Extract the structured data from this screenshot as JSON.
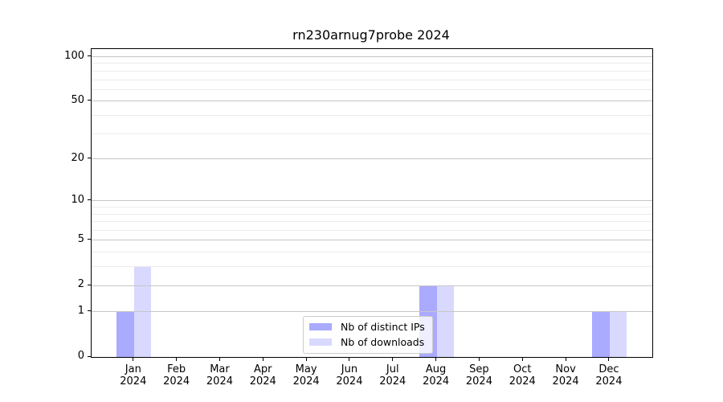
{
  "chart_data": {
    "type": "bar",
    "title": "rn230arnug7probe 2024",
    "categories": [
      {
        "month": "Jan",
        "year": "2024"
      },
      {
        "month": "Feb",
        "year": "2024"
      },
      {
        "month": "Mar",
        "year": "2024"
      },
      {
        "month": "Apr",
        "year": "2024"
      },
      {
        "month": "May",
        "year": "2024"
      },
      {
        "month": "Jun",
        "year": "2024"
      },
      {
        "month": "Jul",
        "year": "2024"
      },
      {
        "month": "Aug",
        "year": "2024"
      },
      {
        "month": "Sep",
        "year": "2024"
      },
      {
        "month": "Oct",
        "year": "2024"
      },
      {
        "month": "Nov",
        "year": "2024"
      },
      {
        "month": "Dec",
        "year": "2024"
      }
    ],
    "series": [
      {
        "name": "Nb of distinct IPs",
        "color": "#aaaaff",
        "values": [
          1,
          0,
          0,
          0,
          0,
          0,
          0,
          2,
          0,
          0,
          0,
          1
        ]
      },
      {
        "name": "Nb of downloads",
        "color": "#d9d9ff",
        "values": [
          3,
          0,
          0,
          0,
          0,
          0,
          0,
          2,
          0,
          0,
          0,
          1
        ]
      }
    ],
    "xlabel": "",
    "ylabel": "",
    "y_axis": {
      "scale": "log1p",
      "tick_labels": [
        "100",
        "50",
        "20",
        "10",
        "5",
        "2",
        "1",
        "0"
      ],
      "tick_values": [
        100,
        50,
        20,
        10,
        5,
        2,
        1,
        0
      ],
      "major_gridlines": [
        1,
        2,
        5,
        10,
        20,
        50,
        100
      ],
      "minor_gridlines": [
        3,
        4,
        6,
        7,
        8,
        9,
        30,
        40,
        60,
        70,
        80,
        90
      ],
      "ylim": [
        0,
        113
      ]
    },
    "grid": true,
    "legend": {
      "position": "lower center",
      "items": [
        "Nb of distinct IPs",
        "Nb of downloads"
      ]
    }
  }
}
